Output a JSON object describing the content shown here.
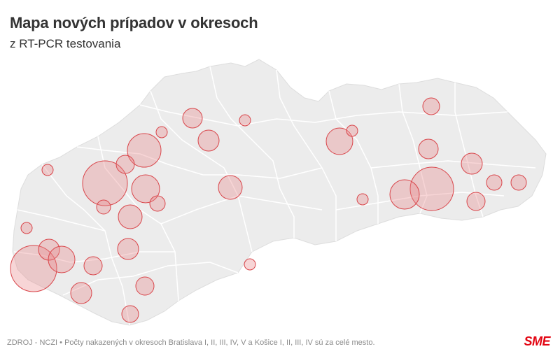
{
  "header": {
    "title": "Mapa nových prípadov v okresoch",
    "subtitle": "z RT-PCR testovania"
  },
  "footer": {
    "source": "ZDROJ - NCZI • Počty nakazených v okresoch Bratislava I, II, III, IV, V a Košice I, II, III, IV sú za celé mesto.",
    "logo": "SME"
  },
  "colors": {
    "country_fill": "#ececec",
    "district_border": "#ffffff",
    "bubble_fill": "#e8888a",
    "bubble_stroke": "#d9454a"
  }
}
